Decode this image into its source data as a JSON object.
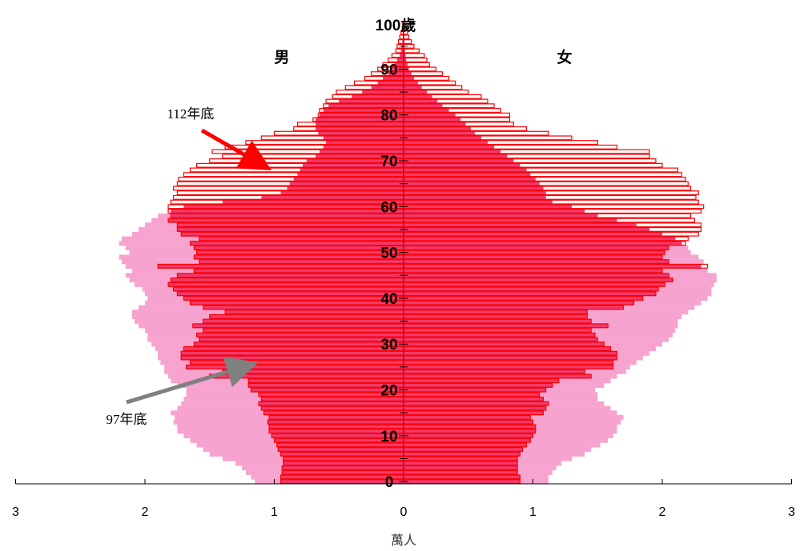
{
  "chart_data": {
    "type": "bar",
    "subtype": "population-pyramid",
    "unit_label": "萬人",
    "top_age_label": "100歲",
    "male_label": "男",
    "female_label": "女",
    "x_ticks": [
      {
        "value": -3,
        "label": "3"
      },
      {
        "value": -2,
        "label": "2"
      },
      {
        "value": -1,
        "label": "1"
      },
      {
        "value": 0,
        "label": "0"
      },
      {
        "value": 1,
        "label": "1"
      },
      {
        "value": 2,
        "label": "2"
      },
      {
        "value": 3,
        "label": "3"
      }
    ],
    "age_ticks": [
      0,
      10,
      20,
      30,
      40,
      50,
      60,
      70,
      80,
      90
    ],
    "xlim": [
      -3,
      3
    ],
    "ylim": [
      0,
      100
    ],
    "colors": {
      "series_2008": "#f7a3cf",
      "series_2023_edge": "#ff0000",
      "overlap_fill": "#ee3b6e",
      "arrow_2023": "#ff0000",
      "arrow_2008": "#808080"
    },
    "series": [
      {
        "name": "97年底",
        "ages": [
          0,
          1,
          2,
          3,
          4,
          5,
          6,
          7,
          8,
          9,
          10,
          11,
          12,
          13,
          14,
          15,
          16,
          17,
          18,
          19,
          20,
          21,
          22,
          23,
          24,
          25,
          26,
          27,
          28,
          29,
          30,
          31,
          32,
          33,
          34,
          35,
          36,
          37,
          38,
          39,
          40,
          41,
          42,
          43,
          44,
          45,
          46,
          47,
          48,
          49,
          50,
          51,
          52,
          53,
          54,
          55,
          56,
          57,
          58,
          59,
          60,
          61,
          62,
          63,
          64,
          65,
          66,
          67,
          68,
          69,
          70,
          71,
          72,
          73,
          74,
          75,
          76,
          77,
          78,
          79,
          80,
          81,
          82,
          83,
          84,
          85,
          86,
          87,
          88,
          89,
          90,
          91,
          92,
          93,
          94,
          95,
          96,
          97,
          98,
          99,
          100
        ],
        "male": [
          1.15,
          1.18,
          1.22,
          1.25,
          1.3,
          1.4,
          1.5,
          1.55,
          1.6,
          1.65,
          1.7,
          1.75,
          1.75,
          1.78,
          1.77,
          1.8,
          1.75,
          1.72,
          1.7,
          1.68,
          1.68,
          1.75,
          1.8,
          1.82,
          1.85,
          1.85,
          1.88,
          1.9,
          1.9,
          1.92,
          1.95,
          1.98,
          1.98,
          2.0,
          2.05,
          2.08,
          2.1,
          2.1,
          2.05,
          2.0,
          1.98,
          2.0,
          2.02,
          2.08,
          2.12,
          2.15,
          2.1,
          2.15,
          2.18,
          2.2,
          2.12,
          2.15,
          2.2,
          2.18,
          2.1,
          2.05,
          2.0,
          1.95,
          1.9,
          1.8,
          1.7,
          1.4,
          1.1,
          0.95,
          0.9,
          0.88,
          0.85,
          0.82,
          0.8,
          0.78,
          0.75,
          0.68,
          0.65,
          0.62,
          0.6,
          0.62,
          0.66,
          0.68,
          0.68,
          0.68,
          0.65,
          0.62,
          0.58,
          0.5,
          0.4,
          0.32,
          0.25,
          0.2,
          0.16,
          0.12,
          0.09,
          0.07,
          0.05,
          0.03,
          0.02,
          0.015,
          0.01,
          0.006,
          0.004,
          0.002,
          0.001
        ],
        "female": [
          1.12,
          1.12,
          1.15,
          1.18,
          1.22,
          1.3,
          1.4,
          1.45,
          1.52,
          1.58,
          1.62,
          1.65,
          1.65,
          1.68,
          1.7,
          1.65,
          1.6,
          1.55,
          1.5,
          1.5,
          1.48,
          1.55,
          1.6,
          1.65,
          1.72,
          1.75,
          1.8,
          1.85,
          1.9,
          1.95,
          2.0,
          2.05,
          2.08,
          2.1,
          2.12,
          2.12,
          2.15,
          2.2,
          2.25,
          2.3,
          2.35,
          2.38,
          2.38,
          2.4,
          2.42,
          2.42,
          2.35,
          2.3,
          2.32,
          2.28,
          2.22,
          2.2,
          2.15,
          2.1,
          2.0,
          1.9,
          1.8,
          1.65,
          1.5,
          1.4,
          1.3,
          1.15,
          1.1,
          1.1,
          1.08,
          1.05,
          1.02,
          0.98,
          0.95,
          0.9,
          0.85,
          0.8,
          0.75,
          0.7,
          0.65,
          0.6,
          0.55,
          0.52,
          0.48,
          0.44,
          0.4,
          0.35,
          0.3,
          0.26,
          0.22,
          0.18,
          0.14,
          0.11,
          0.08,
          0.06,
          0.04,
          0.03,
          0.02,
          0.015,
          0.01,
          0.006,
          0.004,
          0.002,
          0.001,
          0.0,
          0.0
        ]
      },
      {
        "name": "112年底",
        "ages": [
          0,
          1,
          2,
          3,
          4,
          5,
          6,
          7,
          8,
          9,
          10,
          11,
          12,
          13,
          14,
          15,
          16,
          17,
          18,
          19,
          20,
          21,
          22,
          23,
          24,
          25,
          26,
          27,
          28,
          29,
          30,
          31,
          32,
          33,
          34,
          35,
          36,
          37,
          38,
          39,
          40,
          41,
          42,
          43,
          44,
          45,
          46,
          47,
          48,
          49,
          50,
          51,
          52,
          53,
          54,
          55,
          56,
          57,
          58,
          59,
          60,
          61,
          62,
          63,
          64,
          65,
          66,
          67,
          68,
          69,
          70,
          71,
          72,
          73,
          74,
          75,
          76,
          77,
          78,
          79,
          80,
          81,
          82,
          83,
          84,
          85,
          86,
          87,
          88,
          89,
          90,
          91,
          92,
          93,
          94,
          95,
          96,
          97,
          98,
          99,
          100
        ],
        "male": [
          0.95,
          0.95,
          0.94,
          0.94,
          0.93,
          0.93,
          0.95,
          0.97,
          0.98,
          1.0,
          1.02,
          1.04,
          1.04,
          1.05,
          1.04,
          1.08,
          1.1,
          1.12,
          1.1,
          1.12,
          1.18,
          1.2,
          1.2,
          1.5,
          1.4,
          1.68,
          1.65,
          1.72,
          1.72,
          1.7,
          1.62,
          1.58,
          1.6,
          1.55,
          1.63,
          1.55,
          1.5,
          1.38,
          1.55,
          1.65,
          1.7,
          1.75,
          1.78,
          1.82,
          1.8,
          1.75,
          1.62,
          1.9,
          1.58,
          1.62,
          1.6,
          1.62,
          1.65,
          1.58,
          1.72,
          1.75,
          1.75,
          1.82,
          1.8,
          1.82,
          1.82,
          1.8,
          1.78,
          1.75,
          1.78,
          1.75,
          1.74,
          1.7,
          1.65,
          1.6,
          1.5,
          1.4,
          1.48,
          1.38,
          1.22,
          1.1,
          1.0,
          0.85,
          0.82,
          0.7,
          0.66,
          0.65,
          0.62,
          0.6,
          0.55,
          0.52,
          0.45,
          0.38,
          0.3,
          0.25,
          0.2,
          0.16,
          0.12,
          0.09,
          0.06,
          0.05,
          0.04,
          0.03,
          0.02,
          0.01,
          0.005
        ],
        "female": [
          0.9,
          0.9,
          0.88,
          0.88,
          0.88,
          0.88,
          0.9,
          0.92,
          0.95,
          0.98,
          1.0,
          1.02,
          1.02,
          1.0,
          0.98,
          1.08,
          1.1,
          1.12,
          1.08,
          1.05,
          1.1,
          1.15,
          1.2,
          1.45,
          1.4,
          1.62,
          1.62,
          1.65,
          1.65,
          1.6,
          1.55,
          1.5,
          1.48,
          1.45,
          1.58,
          1.45,
          1.42,
          1.42,
          1.7,
          1.78,
          1.85,
          1.95,
          1.97,
          2.02,
          2.08,
          2.05,
          2.0,
          2.35,
          2.05,
          2.0,
          2.02,
          2.05,
          2.18,
          2.2,
          2.28,
          2.3,
          2.3,
          2.25,
          2.22,
          2.3,
          2.32,
          2.28,
          2.26,
          2.28,
          2.22,
          2.2,
          2.18,
          2.15,
          2.12,
          2.0,
          1.95,
          1.9,
          1.9,
          1.65,
          1.5,
          1.3,
          1.12,
          0.95,
          0.85,
          0.82,
          0.82,
          0.75,
          0.7,
          0.65,
          0.6,
          0.5,
          0.45,
          0.4,
          0.35,
          0.3,
          0.25,
          0.2,
          0.18,
          0.16,
          0.12,
          0.08,
          0.06,
          0.04,
          0.03,
          0.02,
          0.01
        ]
      }
    ],
    "annotations": [
      {
        "label": "112年底",
        "target_series": "112年底",
        "target_age": 70,
        "target_value": -1.4
      },
      {
        "label": "97年底",
        "target_series": "97年底",
        "target_age": 26,
        "target_value": -1.8
      }
    ]
  }
}
